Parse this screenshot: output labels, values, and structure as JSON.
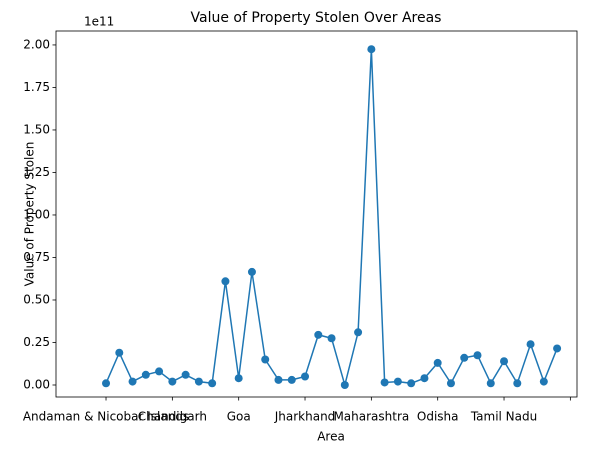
{
  "chart_data": {
    "type": "line",
    "title": "Value of Property Stolen Over Areas",
    "xlabel": "Area",
    "ylabel": "Value of Property Stolen",
    "y_offset_label": "1e11",
    "categories": [
      "Andaman & Nicobar Islands",
      null,
      null,
      null,
      null,
      "Chandigarh",
      null,
      null,
      null,
      null,
      "Goa",
      null,
      null,
      null,
      null,
      "Jharkhand",
      null,
      null,
      null,
      null,
      "Maharashtra",
      null,
      null,
      null,
      null,
      "Odisha",
      null,
      null,
      null,
      null,
      "Tamil Nadu",
      null,
      null,
      null,
      null
    ],
    "series": [
      {
        "name": "Value of Property Stolen",
        "color": "#1f77b4",
        "values": [
          0.01,
          0.19,
          0.02,
          0.06,
          0.08,
          0.02,
          0.06,
          0.02,
          0.01,
          0.61,
          0.04,
          0.665,
          0.15,
          0.03,
          0.03,
          0.05,
          0.295,
          0.275,
          0.0,
          0.31,
          1.975,
          0.015,
          0.02,
          0.01,
          0.04,
          0.13,
          0.01,
          0.16,
          0.175,
          0.01,
          0.14,
          0.01,
          0.24,
          0.02,
          0.215
        ]
      }
    ],
    "xlim": [
      -3.77,
      35.5
    ],
    "xticks": [
      0,
      5,
      10,
      15,
      20,
      25,
      30,
      35
    ],
    "ylim": [
      -0.0706,
      2.082
    ],
    "yticks": [
      {
        "value": 0,
        "label": "0.00"
      },
      {
        "value": 0.25,
        "label": "0.25"
      },
      {
        "value": 0.5,
        "label": "0.50"
      },
      {
        "value": 0.75,
        "label": "0.75"
      },
      {
        "value": 1,
        "label": "1.00"
      },
      {
        "value": 1.25,
        "label": "1.25"
      },
      {
        "value": 1.5,
        "label": "1.50"
      },
      {
        "value": 1.75,
        "label": "1.75"
      },
      {
        "value": 2,
        "label": "2.00"
      }
    ],
    "grid": false
  }
}
